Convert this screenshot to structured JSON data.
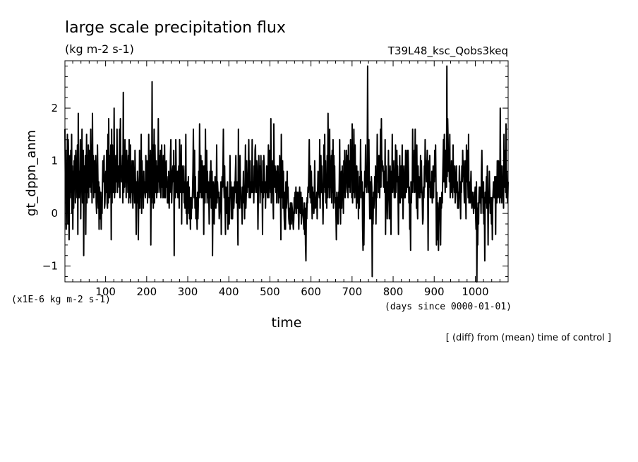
{
  "chart_data": {
    "type": "line",
    "title": "large scale precipitation flux",
    "units": "(kg m-2 s-1)",
    "run_name": "T39L48_ksc_Qobs3keq",
    "ylabel": "gt_dppn_anm",
    "xlabel": "time",
    "x_units": "(days since 0000-01-01)",
    "y_scale_note": "(x1E-6 kg m-2 s-1)",
    "footnote": "[ (diff) from (mean) time of control ]",
    "xlim": [
      1,
      1080
    ],
    "ylim": [
      -1.3,
      2.9
    ],
    "x_ticks": [
      100,
      200,
      300,
      400,
      500,
      600,
      700,
      800,
      900,
      1000
    ],
    "y_ticks": [
      -1,
      0,
      1,
      2
    ],
    "grid": false,
    "series": [
      {
        "values": [
          1.6,
          0.6,
          1.2,
          -0.3,
          0.5,
          0.1,
          1.5,
          -0.2,
          1.4,
          0.9,
          -0.5,
          0.6,
          1.1,
          0.3,
          1.2,
          0.4,
          1.5,
          0.0,
          0.9,
          -0.3,
          0.8,
          0.1,
          1.0,
          0.6,
          1.1,
          0.2,
          1.2,
          0.5,
          1.0,
          0.3,
          1.3,
          -0.4,
          1.9,
          0.6,
          0.3,
          0.8,
          0.4,
          1.4,
          -0.1,
          0.9,
          0.7,
          1.6,
          0.2,
          0.8,
          1.2,
          -0.8,
          0.9,
          0.4,
          0.6,
          1.1,
          -0.4,
          0.7,
          1.5,
          0.2,
          1.1,
          0.4,
          1.3,
          0.3,
          1.2,
          0.8,
          0.5,
          1.0,
          1.6,
          0.4,
          1.3,
          0.2,
          1.9,
          0.6,
          1.1,
          0.3,
          0.6,
          1.0,
          0.4,
          0.8,
          1.1,
          0.2,
          0.0,
          0.5,
          1.3,
          0.7,
          0.1,
          0.6,
          -0.3,
          0.5,
          0.3,
          -0.1,
          0.4,
          -0.3,
          0.3,
          0.0,
          0.6,
          1.0,
          0.6,
          0.9,
          1.1,
          0.1,
          0.2,
          0.6,
          0.8,
          0.4,
          1.2,
          0.2,
          0.1,
          1.5,
          0.2,
          1.8,
          0.6,
          0.3,
          1.1,
          0.4,
          1.3,
          -0.5,
          1.6,
          0.2,
          1.3,
          0.4,
          1.1,
          0.4,
          2.0,
          0.3,
          0.9,
          0.4,
          1.1,
          0.6,
          0.8,
          1.6,
          0.4,
          0.9,
          0.8,
          0.9,
          0.5,
          1.6,
          0.3,
          1.8,
          0.8,
          0.9,
          0.6,
          0.6,
          1.1,
          0.2,
          2.3,
          0.4,
          0.9,
          0.5,
          1.4,
          0.6,
          1.0,
          0.3,
          1.2,
          0.7,
          1.0,
          0.4,
          1.1,
          0.2,
          1.4,
          0.9,
          0.3,
          1.3,
          0.2,
          0.7,
          0.4,
          1.0,
          0.5,
          0.1,
          1.0,
          0.6,
          0.8,
          0.2,
          1.2,
          0.7,
          0.4,
          -0.4,
          0.6,
          0.2,
          0.8,
          0.6,
          -0.5,
          0.4,
          0.1,
          1.2,
          0.1,
          0.8,
          0.3,
          1.5,
          0.0,
          1.0,
          0.4,
          0.7,
          0.1,
          0.8,
          0.4,
          0.6,
          0.4,
          0.3,
          1.1,
          0.4,
          0.8,
          1.0,
          0.2,
          0.8,
          0.5,
          1.5,
          0.3,
          1.1,
          0.6,
          1.2,
          -0.6,
          0.8,
          0.2,
          2.5,
          0.3,
          1.3,
          0.1,
          0.7,
          1.6,
          0.2,
          1.3,
          0.7,
          0.4,
          1.0,
          0.3,
          0.7,
          0.9,
          0.4,
          1.8,
          0.6,
          1.1,
          0.5,
          0.4,
          1.2,
          0.3,
          0.8,
          1.3,
          0.5,
          0.9,
          0.3,
          1.1,
          0.4,
          0.3,
          1.3,
          0.5,
          0.3,
          0.9,
          1.0,
          0.5,
          0.7,
          0.2,
          0.2,
          0.4,
          0.8,
          0.1,
          0.6,
          0.4,
          1.1,
          1.4,
          0.6,
          0.2,
          0.5,
          0.8,
          0.9,
          0.6,
          1.2,
          -0.8,
          0.9,
          0.7,
          0.3,
          1.4,
          0.8,
          0.4,
          0.6,
          0.8,
          0.3,
          0.6,
          0.9,
          0.1,
          1.4,
          0.4,
          1.1,
          0.4,
          1.3,
          -0.2,
          0.9,
          0.4,
          0.4,
          0.7,
          0.9,
          0.2,
          0.6,
          0.1,
          0.4,
          1.5,
          0.0,
          0.4,
          -0.2,
          0.6,
          0.1,
          0.7,
          0.0,
          0.5,
          -0.1,
          0.3,
          -0.3,
          0.3,
          -0.1,
          0.3,
          0.1,
          0.4,
          0.8,
          1.6,
          0.6,
          0.3,
          1.2,
          0.1,
          0.7,
          -0.1,
          0.3,
          0.1,
          -0.3,
          0.4,
          -0.1,
          0.2,
          0.8,
          0.3,
          1.7,
          0.9,
          0.4,
          1.1,
          0.3,
          0.9,
          1.0,
          0.3,
          0.9,
          0.6,
          -0.4,
          0.9,
          0.5,
          0.2,
          1.6,
          0.4,
          0.6,
          1.2,
          0.2,
          0.8,
          0.3,
          0.6,
          0.4,
          -0.2,
          0.5,
          0.8,
          0.3,
          1.0,
          0.1,
          0.5,
          0.8,
          -0.8,
          0.2,
          0.6,
          0.4,
          -0.2,
          0.3,
          0.7,
          0.5,
          0.1,
          0.4,
          1.3,
          0.2,
          0.6,
          0.4,
          0.3,
          0.4,
          -0.1,
          0.0,
          0.3,
          0.2,
          0.6,
          -0.4,
          0.3,
          0.7,
          0.5,
          0.8,
          1.6,
          0.6,
          0.3,
          0.9,
          0.2,
          -0.4,
          0.5,
          0.3,
          0.0,
          0.4,
          0.6,
          -0.3,
          0.3,
          0.0,
          -0.2,
          0.4,
          1.1,
          0.3,
          0.6,
          -0.1,
          0.3,
          0.5,
          -0.1,
          0.4,
          0.5,
          0.1,
          0.3,
          0.6,
          0.4,
          0.8,
          1.1,
          0.2,
          0.4,
          0.6,
          0.1,
          -0.6,
          1.6,
          0.3,
          0.8,
          0.1,
          1.1,
          0.4,
          0.5,
          0.1,
          0.2,
          -0.2,
          0.5,
          0.3,
          0.8,
          0.2,
          0.5,
          -0.1,
          0.6,
          1.3,
          0.1,
          0.4,
          1.0,
          0.4,
          0.6,
          0.5,
          0.8,
          1.4,
          0.3,
          0.6,
          1.0,
          0.3,
          0.5,
          0.6,
          0.4,
          1.4,
          0.6,
          0.4,
          0.6,
          0.2,
          0.9,
          0.4,
          1.2,
          1.3,
          0.6,
          0.4,
          1.0,
          0.9,
          0.5,
          -0.3,
          0.4,
          1.1,
          0.6,
          0.9,
          0.2,
          0.6,
          1.1,
          0.5,
          0.4,
          0.6,
          -0.4,
          1.0,
          0.3,
          1.1,
          0.9,
          0.4,
          0.6,
          0.1,
          0.6,
          0.4,
          0.9,
          0.6,
          0.3,
          0.7,
          1.3,
          0.3,
          0.9,
          1.2,
          0.6,
          0.4,
          1.8,
          0.2,
          0.6,
          0.5,
          1.0,
          0.3,
          -0.1,
          1.7,
          0.8,
          0.5,
          0.9,
          0.7,
          0.4,
          0.8,
          0.2,
          0.9,
          0.5,
          0.9,
          0.2,
          0.7,
          0.3,
          1.1,
          0.9,
          0.4,
          -0.5,
          1.5,
          0.6,
          0.3,
          1.0,
          0.1,
          0.8,
          0.3,
          -0.1,
          -0.3,
          0.4,
          -0.3,
          0.6,
          0.1,
          0.2,
          0.8,
          0.3,
          0.5,
          0.1,
          -0.1,
          -0.2,
          0.1,
          -0.3,
          0.2,
          0.1,
          -0.2,
          0.2,
          0.1,
          0.0,
          -0.2,
          -0.3,
          -0.1,
          0.3,
          0.0,
          0.4,
          0.1,
          0.5,
          0.0,
          0.4,
          0.2,
          0.1,
          0.4,
          0.0,
          -0.3,
          0.3,
          0.5,
          0.1,
          0.0,
          0.4,
          -0.2,
          0.0,
          0.3,
          0.1,
          0.0,
          -0.1,
          -0.3,
          0.2,
          -0.4,
          0.1,
          -0.6,
          -0.9,
          0.2,
          -0.1,
          0.3,
          0.2,
          0.5,
          0.4,
          0.8,
          1.4,
          0.6,
          0.3,
          0.9,
          0.2,
          0.8,
          0.4,
          -0.1,
          0.5,
          0.1,
          0.4,
          0.0,
          0.2,
          1.0,
          0.3,
          0.1,
          0.3,
          0.2,
          0.4,
          -0.1,
          0.4,
          0.8,
          0.6,
          0.4,
          0.3,
          1.4,
          0.1,
          0.7,
          1.1,
          0.4,
          0.9,
          0.5,
          0.3,
          -0.2,
          0.4,
          1.3,
          0.5,
          1.5,
          0.4,
          1.0,
          0.2,
          0.6,
          0.1,
          1.1,
          0.3,
          1.9,
          0.5,
          0.9,
          0.3,
          1.6,
          0.3,
          1.0,
          0.5,
          1.1,
          0.2,
          1.2,
          0.4,
          1.4,
          0.1,
          1.1,
          0.6,
          0.9,
          0.2,
          0.3,
          0.0,
          -0.5,
          0.4,
          0.1,
          0.3,
          -0.2,
          0.4,
          0.1,
          0.6,
          1.4,
          0.3,
          -0.2,
          0.5,
          0.8,
          0.1,
          0.9,
          0.3,
          0.7,
          0.0,
          1.0,
          0.4,
          1.2,
          0.3,
          0.8,
          0.6,
          1.2,
          0.5,
          0.4,
          1.1,
          0.3,
          1.3,
          0.5,
          0.8,
          1.0,
          0.4,
          1.4,
          0.7,
          1.1,
          0.3,
          1.7,
          0.2,
          1.2,
          0.4,
          1.6,
          0.8,
          0.3,
          1.3,
          0.5,
          0.7,
          0.1,
          0.9,
          0.4,
          0.2,
          0.8,
          -0.1,
          0.5,
          0.1,
          0.7,
          0.3,
          1.4,
          0.5,
          0.8,
          0.3,
          0.6,
          -0.3,
          -0.7,
          0.4,
          -0.6,
          0.3,
          0.8,
          0.5,
          1.3,
          0.6,
          0.7,
          0.4,
          0.9,
          2.8,
          0.8,
          0.4,
          1.4,
          0.5,
          -0.1,
          0.6,
          -0.1,
          0.3,
          0.7,
          0.5,
          -1.2,
          0.3,
          -0.2,
          0.4,
          0.1,
          0.3,
          0.7,
          0.4,
          0.9,
          -0.2,
          0.5,
          0.3,
          1.5,
          0.6,
          1.0,
          0.4,
          1.1,
          0.6,
          0.3,
          0.8,
          1.6,
          0.5,
          1.8,
          0.9,
          1.0,
          0.8,
          0.9,
          0.5,
          0.7,
          0.8,
          0.4,
          1.4,
          -0.4,
          0.9,
          0.4,
          0.6,
          -0.1,
          0.3,
          0.6,
          1.2,
          0.5,
          -0.1,
          0.4,
          0.9,
          0.2,
          -0.4,
          0.8,
          0.5,
          1.5,
          0.4,
          1.0,
          0.6,
          0.8,
          0.3,
          1.0,
          0.3,
          1.3,
          0.4,
          0.8,
          1.2,
          0.6,
          0.9,
          0.4,
          -0.4,
          0.7,
          0.3,
          1.1,
          0.2,
          0.6,
          0.9,
          0.3,
          0.7,
          1.3,
          0.4,
          -0.1,
          0.5,
          0.9,
          0.3,
          0.5,
          0.3,
          1.2,
          1.0,
          0.4,
          0.5,
          1.2,
          0.5,
          1.2,
          0.8,
          0.2,
          0.5,
          -0.3,
          0.1,
          -0.7,
          0.6,
          0.2,
          0.6,
          0.4,
          1.6,
          0.6,
          1.0,
          0.4,
          1.2,
          0.4,
          1.6,
          0.6,
          0.9,
          0.1,
          1.3,
          0.2,
          -0.1,
          0.9,
          0.4,
          0.7,
          0.3,
          0.6,
          0.3,
          1.1,
          0.4,
          1.0,
          0.5,
          0.3,
          -0.2,
          -0.1,
          0.5,
          0.3,
          0.9,
          0.5,
          1.4,
          0.8,
          1.0,
          0.6,
          0.8,
          1.2,
          0.6,
          -0.7,
          0.8,
          1.0,
          0.5,
          1.1,
          0.3,
          0.6,
          0.4,
          0.3,
          0.8,
          0.2,
          0.5,
          0.9,
          0.3,
          0.8,
          0.6,
          1.2,
          0.7,
          1.3,
          0.5,
          -0.6,
          0.4,
          -0.5,
          0.2,
          -0.3,
          -0.7,
          -0.1,
          0.2,
          0.3,
          0.1,
          -0.6,
          0.3,
          0.1,
          0.4,
          0.2,
          0.6,
          1.0,
          1.4,
          0.6,
          1.5,
          0.8,
          0.4,
          1.2,
          0.9,
          0.5,
          2.8,
          0.7,
          1.8,
          1.4,
          0.8,
          1.2,
          0.6,
          1.5,
          0.3,
          0.9,
          0.4,
          1.0,
          0.6,
          0.9,
          0.3,
          1.3,
          0.5,
          0.8,
          0.4,
          0.9,
          0.2,
          0.4,
          0.6,
          0.9,
          0.4,
          0.6,
          0.1,
          0.4,
          0.1,
          0.4,
          0.9,
          0.6,
          0.3,
          -0.1,
          0.6,
          0.4,
          0.9,
          0.6,
          1.2,
          0.7,
          1.0,
          0.5,
          0.2,
          0.6,
          1.0,
          0.5,
          -0.1,
          1.3,
          0.6,
          1.2,
          0.8,
          0.3,
          1.5,
          0.2,
          0.6,
          0.4,
          0.2,
          0.5,
          0.8,
          0.3,
          0.1,
          0.4,
          0.2,
          0.3,
          0.0,
          0.4,
          0.1,
          0.3,
          0.5,
          0.0,
          -0.3,
          0.6,
          -1.3,
          0.1,
          -0.6,
          0.2,
          -0.2,
          0.3,
          0.5,
          0.4,
          0.2,
          0.5,
          0.0,
          0.8,
          1.2,
          0.3,
          0.6,
          0.0,
          0.6,
          -0.2,
          0.3,
          -0.9,
          0.4,
          0.2,
          0.4,
          0.7,
          0.1,
          0.9,
          0.3,
          -0.6,
          0.4,
          0.2,
          0.8,
          0.4,
          0.0,
          0.3,
          0.2,
          -0.2,
          0.3,
          -0.5,
          0.2,
          0.4,
          0.6,
          0.4,
          0.3,
          0.7,
          0.5,
          -0.4,
          0.7,
          0.4,
          0.2,
          1.0,
          0.5,
          0.3,
          1.0,
          0.6,
          0.4,
          0.2,
          2.0,
          0.6,
          0.3,
          0.9,
          0.2,
          0.6,
          0.4,
          0.9,
          0.1,
          1.5,
          0.5,
          0.8,
          1.2,
          0.4,
          1.7,
          0.3,
          0.8,
          0.4,
          0.2,
          0.6
        ]
      }
    ]
  }
}
